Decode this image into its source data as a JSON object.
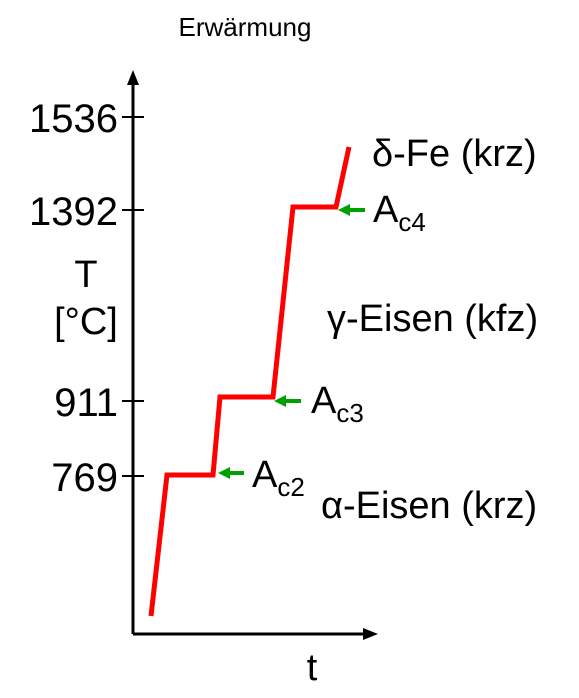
{
  "title": "Erwärmung",
  "axis": {
    "y_label_line1": "T",
    "y_label_line2": "[°C]",
    "x_label": "t",
    "ticks": [
      "1536",
      "1392",
      "911",
      "769"
    ]
  },
  "phases": {
    "delta": "δ-Fe (krz)",
    "gamma": "γ-Eisen (kfz)",
    "alpha": "α-Eisen (krz)"
  },
  "transitions": [
    {
      "base": "A",
      "sub": "c4"
    },
    {
      "base": "A",
      "sub": "c3"
    },
    {
      "base": "A",
      "sub": "c2"
    }
  ],
  "colors": {
    "curve": "#ff0000",
    "arrow": "#00a000",
    "axis": "#000000"
  }
}
